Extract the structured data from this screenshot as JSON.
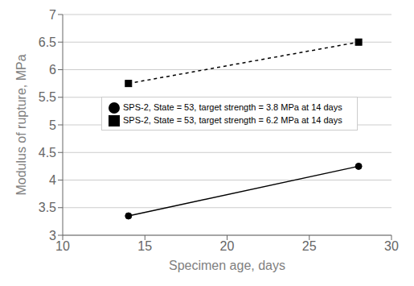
{
  "chart_data": {
    "type": "line",
    "x_label": "Specimen age, days",
    "y_label": "Modulus of rupture, MPa",
    "x": [
      14,
      28
    ],
    "series": [
      {
        "name": "SPS-2, State = 53, target strength = 3.8 MPa at 14 days",
        "color": "#000000",
        "values": [
          3.35,
          4.25
        ],
        "marker": "circle",
        "line_style": "solid"
      },
      {
        "name": "SPS-2, State = 53, target strength = 6.2 MPa at 14 days",
        "color": "#000000",
        "values": [
          5.75,
          6.5
        ],
        "marker": "square",
        "line_style": "dashed"
      }
    ],
    "xlim": [
      10,
      30
    ],
    "xticks": [
      10,
      15,
      20,
      25,
      30
    ],
    "ylim": [
      3,
      7
    ],
    "yticks": [
      3,
      3.5,
      4,
      4.5,
      5,
      5.5,
      6,
      6.5,
      7
    ],
    "grid": "y",
    "legend": "upper left"
  }
}
